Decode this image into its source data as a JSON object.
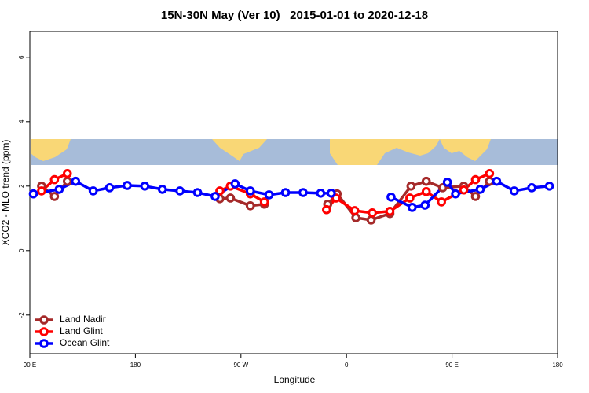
{
  "chart_data": {
    "type": "line",
    "title": "15N-30N May (Ver 10)   2015-01-01 to 2020-12-18",
    "xlabel": "Longitude",
    "ylabel": "XCO2 - MLO trend (ppm)",
    "xlim": [
      -270,
      180
    ],
    "xticks": [
      {
        "value": -270,
        "label": "90 E"
      },
      {
        "value": -180,
        "label": "180"
      },
      {
        "value": -90,
        "label": "90 W"
      },
      0,
      {
        "value": 90,
        "label": "90 E"
      },
      180
    ],
    "ylim": [
      -3.2,
      6.8
    ],
    "yticks": [
      -2,
      0,
      2,
      4,
      6
    ],
    "legend": "bottomleft",
    "series": [
      {
        "name": "Land Nadir",
        "color": "#a52a2a",
        "x": [
          -260,
          -249,
          -238,
          null,
          -108,
          -99,
          -82,
          -70,
          null,
          -16,
          -8,
          8,
          21,
          37,
          55,
          68,
          82,
          100,
          110,
          122
        ],
        "values": [
          2.0,
          1.68,
          2.15,
          null,
          1.61,
          1.63,
          1.39,
          1.44,
          null,
          1.44,
          1.76,
          1.02,
          0.95,
          1.15,
          2.0,
          2.15,
          1.95,
          2.0,
          1.68,
          2.15
        ]
      },
      {
        "name": "Land Glint",
        "color": "#ff0000",
        "x": [
          -260,
          -249,
          -238,
          null,
          -108,
          -99,
          -82,
          -70,
          null,
          -17,
          -9,
          7,
          22,
          37,
          54,
          68,
          81,
          100,
          110,
          122
        ],
        "values": [
          1.85,
          2.2,
          2.39,
          null,
          1.85,
          2.0,
          1.76,
          1.51,
          null,
          1.27,
          1.63,
          1.24,
          1.17,
          1.22,
          1.63,
          1.83,
          1.51,
          1.88,
          2.2,
          2.39
        ]
      },
      {
        "name": "Ocean Glint",
        "color": "#0000ff",
        "x": [
          -267,
          -245,
          -231,
          -216,
          -202,
          -187,
          -172,
          -157,
          -142,
          -127,
          -112,
          -95,
          -82,
          -66,
          -52,
          -37,
          -22,
          -13,
          null,
          38,
          56,
          67,
          86,
          93,
          114,
          128,
          143,
          158,
          173
        ],
        "values": [
          1.76,
          1.9,
          2.15,
          1.85,
          1.95,
          2.02,
          2.0,
          1.9,
          1.85,
          1.8,
          1.68,
          2.07,
          1.85,
          1.73,
          1.8,
          1.8,
          1.78,
          1.78,
          null,
          1.66,
          1.34,
          1.41,
          2.12,
          1.76,
          1.9,
          2.15,
          1.85,
          1.95,
          2.0
        ]
      }
    ]
  }
}
